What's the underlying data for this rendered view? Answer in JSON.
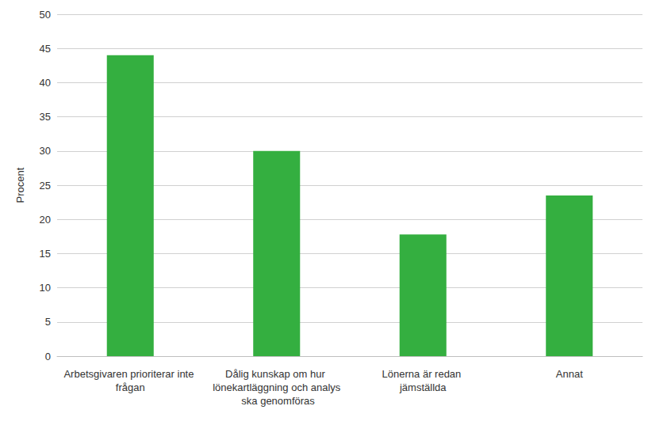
{
  "chart_data": {
    "type": "bar",
    "y_label": "Procent",
    "categories": [
      "Arbetsgivaren prioriterar inte frågan",
      "Dålig kunskap om hur lönekartläggning och analys ska genomföras",
      "Lönerna är redan jämställda",
      "Annat"
    ],
    "values": [
      44,
      30,
      17.8,
      23.5
    ],
    "color": "#34af40",
    "ylim": [
      0,
      50
    ],
    "yticks": [
      0,
      5,
      10,
      15,
      20,
      25,
      30,
      35,
      40,
      45,
      50
    ],
    "grid": true
  }
}
